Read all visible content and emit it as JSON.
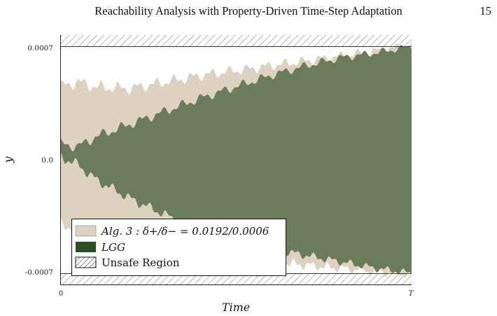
{
  "header": {
    "running_title": "Reachability Analysis with Property-Driven Time-Step Adaptation",
    "page_number": "15"
  },
  "figure": {
    "ylabel": "y",
    "xlabel": "Time"
  },
  "colors": {
    "alg3_fill": "#ddd1c0",
    "lgg_fill": "#6a7c5a",
    "lgg_legend": "#2c4f24",
    "unsafe_hatch": "#777777"
  },
  "chart_data": {
    "type": "area",
    "title": "",
    "xlabel": "Time",
    "ylabel": "y",
    "x_ticks": [
      "0",
      "T"
    ],
    "y_ticks": [
      "0.0007",
      "0.0",
      "-0.0007"
    ],
    "ylim": [
      -0.00078,
      0.00078
    ],
    "grid": false,
    "legend_position": "bottom-left",
    "series": [
      {
        "name": "Alg. 3 : δ+/δ− = 0.0192/0.0006",
        "kind": "band",
        "x_frac": [
          0,
          0.05,
          0.1,
          0.2,
          0.3,
          0.4,
          0.5,
          0.6,
          0.7,
          0.8,
          0.9,
          1.0
        ],
        "upper": [
          0.00045,
          0.00048,
          0.00045,
          0.00044,
          0.00048,
          0.00052,
          0.00055,
          0.00058,
          0.00061,
          0.00064,
          0.00067,
          0.00071
        ],
        "lower": [
          -0.0004,
          -0.00042,
          -0.00048,
          -0.00052,
          -0.00055,
          -0.00058,
          -0.00061,
          -0.00063,
          -0.00065,
          -0.00067,
          -0.00069,
          -0.00071
        ]
      },
      {
        "name": "LGG",
        "kind": "band",
        "x_frac": [
          0,
          0.05,
          0.1,
          0.2,
          0.3,
          0.4,
          0.5,
          0.6,
          0.7,
          0.8,
          0.9,
          1.0
        ],
        "upper": [
          0.0001,
          8e-05,
          0.00014,
          0.00022,
          0.0003,
          0.00038,
          0.00045,
          0.00052,
          0.00058,
          0.00063,
          0.00066,
          0.0007
        ],
        "lower": [
          2e-05,
          -3e-05,
          -0.00012,
          -0.00024,
          -0.00034,
          -0.00044,
          -0.0005,
          -0.00055,
          -0.00059,
          -0.00063,
          -0.00067,
          -0.0007
        ]
      },
      {
        "name": "Unsafe Region",
        "kind": "region",
        "upper_region": [
          0.0007,
          0.00078
        ],
        "lower_region": [
          -0.00078,
          -0.0007
        ]
      }
    ]
  }
}
